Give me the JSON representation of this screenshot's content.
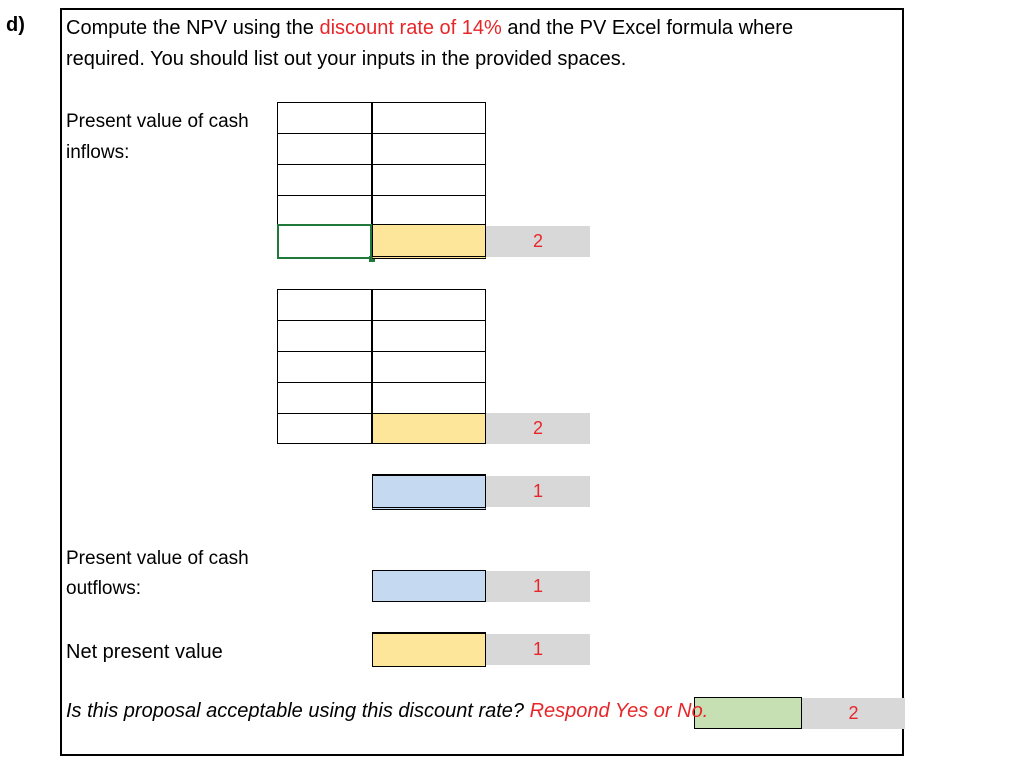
{
  "part_label": "d)",
  "instructions": {
    "line1_a": "Compute the NPV using the ",
    "line1_highlight": "discount rate of 14%",
    "line1_b": " and the PV Excel formula where",
    "line2": "required. You should list out your inputs in the provided spaces."
  },
  "pv_inflows_label_1": "Present value of cash",
  "pv_inflows_label_2": "inflows:",
  "pv_outflows_label_1": "Present value of cash",
  "pv_outflows_label_2": "outflows:",
  "npv_label": "Net present value",
  "scores": {
    "block1_result": "2",
    "block2_result": "2",
    "sum_inflows": "1",
    "outflows": "1",
    "npv": "1",
    "acceptable": "2"
  },
  "question": {
    "text": "Is this proposal acceptable using this discount rate? ",
    "highlight": "Respond Yes or No."
  },
  "colors": {
    "highlight_red": "#e8262a",
    "input_yellow": "#fde59a",
    "input_blue": "#c5daf0",
    "input_green": "#c6e0b4",
    "score_gray": "#d8d8d8",
    "selection_green": "#21783b"
  }
}
